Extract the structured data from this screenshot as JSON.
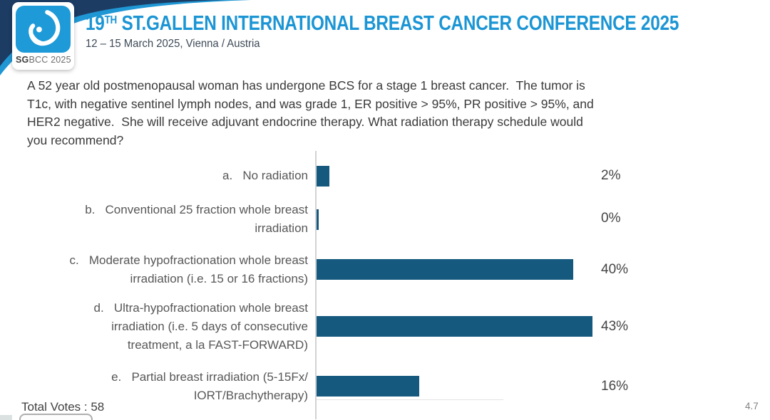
{
  "header": {
    "logo": {
      "icon": "sgbcc-breast-logo-icon",
      "badge_bold": "SG",
      "badge_rest": "BCC 2025"
    },
    "title_num": "19",
    "title_sup": "TH",
    "title_rest": " ST.GALLEN INTERNATIONAL BREAST CANCER CONFERENCE 2025",
    "subtitle": "12 – 15 March 2025, Vienna / Austria",
    "colors": {
      "accent_blue": "#1b95d4",
      "navy_swoosh": "#1c3c64",
      "logo_blue": "#1e9ad8"
    }
  },
  "question": "A 52 year old postmenopausal woman has undergone BCS for a stage 1 breast cancer.  The tumor is\nT1c, with negative sentinel lymph nodes, and was grade 1, ER positive > 95%, PR positive > 95%, and\nHER2 negative.  She will receive adjuvant endocrine therapy. What radiation therapy schedule would\nyou recommend?",
  "chart_data": {
    "type": "bar",
    "orientation": "horizontal",
    "categories": [
      "a. No radiation",
      "b. Conventional 25 fraction whole breast irradiation",
      "c. Moderate hypofractionation whole breast irradiation (i.e. 15 or 16 fractions)",
      "d. Ultra-hypofractionation whole breast irradiation (i.e. 5 days of consecutive treatment, a la FAST-FORWARD)",
      "e. Partial breast irradiation (5-15Fx/ IORT/Brachytherapy)"
    ],
    "values": [
      2,
      0,
      40,
      43,
      16
    ],
    "value_labels": [
      "2%",
      "0%",
      "40%",
      "43%",
      "16%"
    ],
    "xlim": [
      0,
      50
    ],
    "grid": false,
    "legend": "none",
    "bar_color": "#15597e",
    "title": "",
    "xlabel": "",
    "ylabel": ""
  },
  "options": [
    {
      "lines": "a.   No radiation",
      "pct": "2%"
    },
    {
      "lines": "b.   Conventional 25 fraction whole breast\nirradiation",
      "pct": "0%"
    },
    {
      "lines": "c.   Moderate hypofractionation whole breast\nirradiation (i.e. 15 or 16 fractions)",
      "pct": "40%"
    },
    {
      "lines": "d.   Ultra-hypofractionation whole breast\nirradiation (i.e. 5 days of consecutive\ntreatment, a la FAST-FORWARD)",
      "pct": "43%"
    },
    {
      "lines": "e.   Partial breast irradiation (5-15Fx/\nIORT/Brachytherapy)",
      "pct": "16%"
    }
  ],
  "footer": {
    "total_votes": "Total Votes : 58",
    "page_number": "4.7"
  }
}
